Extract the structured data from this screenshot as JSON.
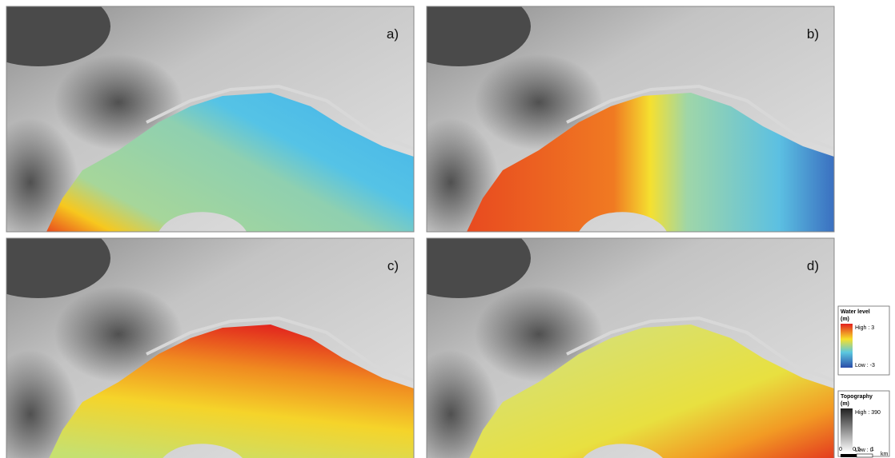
{
  "panels": [
    {
      "label": "a)"
    },
    {
      "label": "b)"
    },
    {
      "label": "c)"
    },
    {
      "label": "d)"
    }
  ],
  "legend": {
    "water_level": {
      "title": "Water level",
      "unit": "(m)",
      "high": "High : 3",
      "low": "Low : -3"
    },
    "topography": {
      "title": "Topography",
      "unit": "(m)",
      "high": "High : 390",
      "low": "Low : 0"
    }
  },
  "scale_bar": {
    "labels": [
      "0",
      "0.5",
      "1"
    ],
    "unit": "km"
  }
}
